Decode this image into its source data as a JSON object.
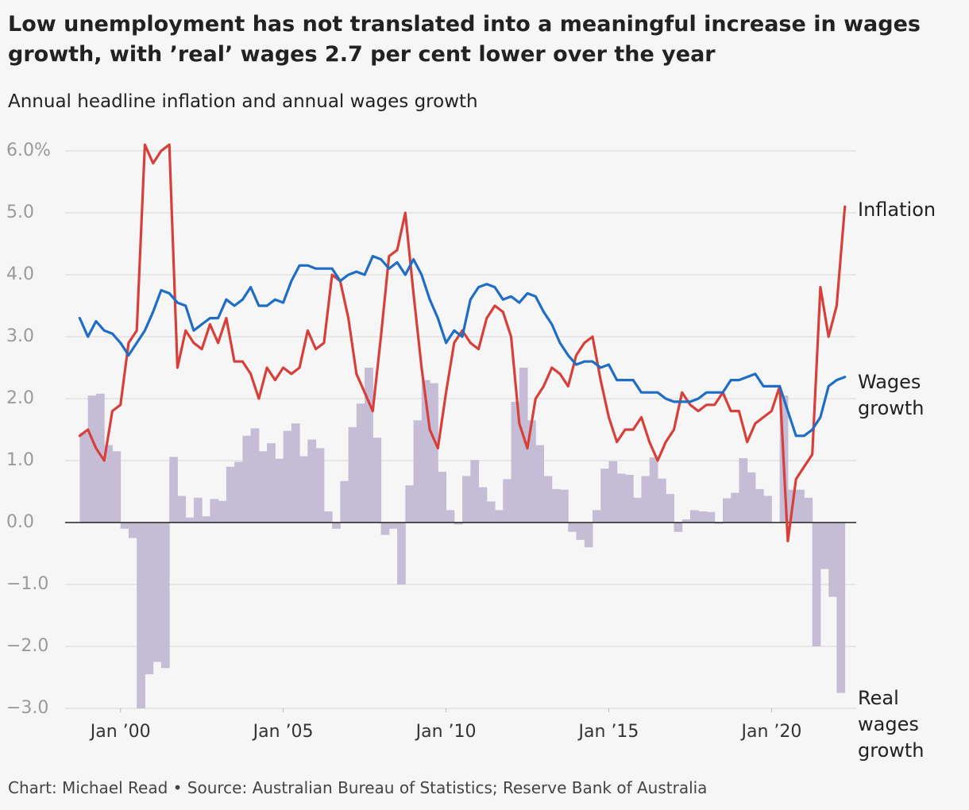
{
  "chart_data": {
    "type": "line",
    "title": "Low unemployment has not translated into a meaningful increase in wages growth, with ’real’ wages 2.7 per cent lower over the year",
    "subtitle": "Annual headline inflation and annual wages growth",
    "source": "Chart: Michael Read • Source: Australian Bureau of Statistics; Reserve Bank of Australia",
    "x": [
      1998.75,
      1999,
      1999.25,
      1999.5,
      1999.75,
      2000,
      2000.25,
      2000.5,
      2000.75,
      2001,
      2001.25,
      2001.5,
      2001.75,
      2002,
      2002.25,
      2002.5,
      2002.75,
      2003,
      2003.25,
      2003.5,
      2003.75,
      2004,
      2004.25,
      2004.5,
      2004.75,
      2005,
      2005.25,
      2005.5,
      2005.75,
      2006,
      2006.25,
      2006.5,
      2006.75,
      2007,
      2007.25,
      2007.5,
      2007.75,
      2008,
      2008.25,
      2008.5,
      2008.75,
      2009,
      2009.25,
      2009.5,
      2009.75,
      2010,
      2010.25,
      2010.5,
      2010.75,
      2011,
      2011.25,
      2011.5,
      2011.75,
      2012,
      2012.25,
      2012.5,
      2012.75,
      2013,
      2013.25,
      2013.5,
      2013.75,
      2014,
      2014.25,
      2014.5,
      2014.75,
      2015,
      2015.25,
      2015.5,
      2015.75,
      2016,
      2016.25,
      2016.5,
      2016.75,
      2017,
      2017.25,
      2017.5,
      2017.75,
      2018,
      2018.25,
      2018.5,
      2018.75,
      2019,
      2019.25,
      2019.5,
      2019.75,
      2020,
      2020.25,
      2020.5,
      2020.75,
      2021,
      2021.25,
      2021.5,
      2021.75,
      2022,
      2022.25
    ],
    "series": [
      {
        "name": "Real wages growth",
        "type": "bar",
        "color": "#c5bcd6",
        "values": [
          null,
          1.45,
          2.05,
          2.08,
          1.25,
          1.15,
          -0.1,
          -0.25,
          -3.0,
          -2.45,
          -2.25,
          -2.35,
          1.06,
          0.43,
          0.08,
          0.4,
          0.1,
          0.38,
          0.35,
          0.9,
          0.98,
          1.4,
          1.52,
          1.15,
          1.28,
          1.03,
          1.48,
          1.6,
          1.07,
          1.34,
          1.2,
          0.18,
          -0.1,
          0.67,
          1.54,
          1.92,
          2.5,
          1.37,
          -0.2,
          -0.1,
          -1.0,
          0.6,
          1.65,
          2.3,
          2.25,
          0.82,
          0.2,
          -0.03,
          0.75,
          1.01,
          0.57,
          0.34,
          0.2,
          0.7,
          1.95,
          2.5,
          1.65,
          1.25,
          0.75,
          0.54,
          0.53,
          -0.15,
          -0.28,
          -0.4,
          0.2,
          0.87,
          0.99,
          0.79,
          0.77,
          0.4,
          0.75,
          1.05,
          0.71,
          0.46,
          -0.15,
          0.05,
          0.2,
          0.18,
          0.17,
          -0.02,
          0.39,
          0.48,
          1.04,
          0.81,
          0.54,
          0.43,
          0.0,
          2.05,
          0.53,
          0.53,
          0.4,
          -2.0,
          -0.75,
          -1.2,
          -2.75
        ]
      },
      {
        "name": "Inflation",
        "type": "line",
        "color": "#d7403a",
        "values": [
          1.4,
          1.5,
          1.2,
          1.0,
          1.8,
          1.9,
          2.9,
          3.1,
          6.1,
          5.8,
          6.0,
          6.1,
          2.5,
          3.1,
          2.9,
          2.8,
          3.2,
          2.9,
          3.3,
          2.6,
          2.6,
          2.4,
          2.0,
          2.5,
          2.3,
          2.5,
          2.4,
          2.5,
          3.1,
          2.8,
          2.9,
          4.0,
          3.9,
          3.3,
          2.4,
          2.1,
          1.8,
          3.0,
          4.3,
          4.4,
          5.0,
          3.7,
          2.5,
          1.5,
          1.2,
          2.1,
          2.9,
          3.1,
          2.9,
          2.8,
          3.3,
          3.5,
          3.4,
          3.0,
          1.6,
          1.2,
          2.0,
          2.2,
          2.5,
          2.4,
          2.2,
          2.7,
          2.9,
          3.0,
          2.3,
          1.7,
          1.3,
          1.5,
          1.5,
          1.7,
          1.3,
          1.0,
          1.3,
          1.5,
          2.1,
          1.9,
          1.8,
          1.9,
          1.9,
          2.1,
          1.8,
          1.8,
          1.3,
          1.6,
          1.7,
          1.8,
          2.2,
          -0.3,
          0.7,
          0.9,
          1.1,
          3.8,
          3.0,
          3.5,
          5.1
        ]
      },
      {
        "name": "Wages growth",
        "type": "line",
        "color": "#1f6dc4",
        "values": [
          3.3,
          3.0,
          3.25,
          3.1,
          3.05,
          2.9,
          2.7,
          2.9,
          3.1,
          3.4,
          3.75,
          3.7,
          3.55,
          3.5,
          3.1,
          3.2,
          3.3,
          3.3,
          3.6,
          3.5,
          3.6,
          3.8,
          3.5,
          3.5,
          3.6,
          3.55,
          3.9,
          4.15,
          4.15,
          4.1,
          4.1,
          4.1,
          3.9,
          4.0,
          4.05,
          4.0,
          4.3,
          4.25,
          4.1,
          4.2,
          4.0,
          4.25,
          4.0,
          3.6,
          3.3,
          2.9,
          3.1,
          3.0,
          3.6,
          3.8,
          3.85,
          3.8,
          3.6,
          3.65,
          3.55,
          3.7,
          3.65,
          3.4,
          3.2,
          2.9,
          2.7,
          2.55,
          2.6,
          2.6,
          2.5,
          2.55,
          2.3,
          2.3,
          2.3,
          2.1,
          2.1,
          2.1,
          2.0,
          1.95,
          1.95,
          1.95,
          2.0,
          2.1,
          2.1,
          2.1,
          2.3,
          2.3,
          2.35,
          2.4,
          2.2,
          2.2,
          2.2,
          1.8,
          1.4,
          1.4,
          1.5,
          1.7,
          2.2,
          2.3,
          2.35
        ]
      }
    ],
    "xlim": [
      1998.3,
      2022.6
    ],
    "xticks": [
      {
        "value": 2000,
        "label": "Jan ’00"
      },
      {
        "value": 2005,
        "label": "Jan ’05"
      },
      {
        "value": 2010,
        "label": "Jan ’10"
      },
      {
        "value": 2015,
        "label": "Jan ’15"
      },
      {
        "value": 2020,
        "label": "Jan ’20"
      }
    ],
    "ylim": [
      -3,
      6
    ],
    "yticks": [
      {
        "value": 6,
        "label": "6.0%"
      },
      {
        "value": 5,
        "label": "5.0"
      },
      {
        "value": 4,
        "label": "4.0"
      },
      {
        "value": 3,
        "label": "3.0"
      },
      {
        "value": 2,
        "label": "2.0"
      },
      {
        "value": 1,
        "label": "1.0"
      },
      {
        "value": 0,
        "label": "0.0"
      },
      {
        "value": -1,
        "label": "−1.0"
      },
      {
        "value": -2,
        "label": "−2.0"
      },
      {
        "value": -3,
        "label": "−3.0"
      }
    ],
    "grid": true
  }
}
